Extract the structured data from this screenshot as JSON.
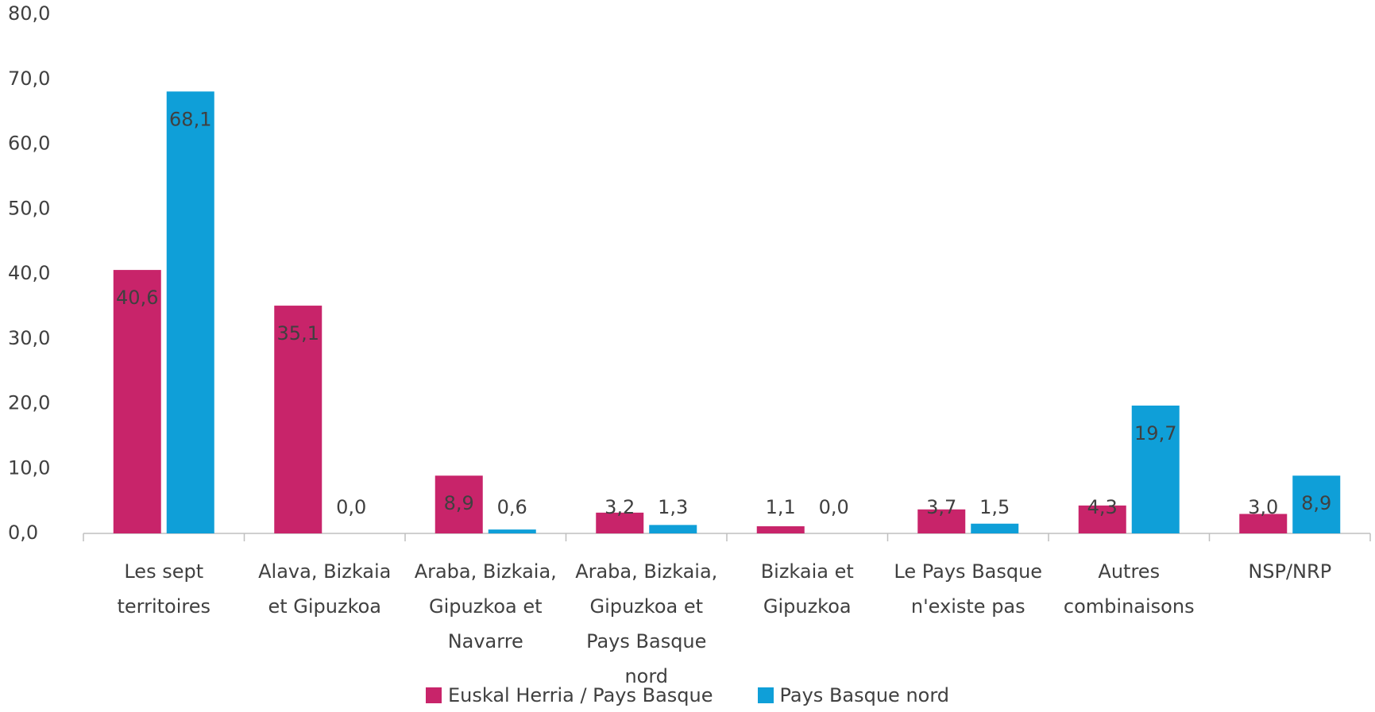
{
  "chart_data": {
    "type": "bar",
    "categories": [
      "Les sept territoires",
      "Alava, Bizkaia et Gipuzkoa",
      "Araba, Bizkaia, Gipuzkoa et Navarre",
      "Araba, Bizkaia, Gipuzkoa et Pays Basque nord",
      "Bizkaia et Gipuzkoa",
      "Le Pays Basque n'existe pas",
      "Autres combinaisons",
      "NSP/NRP"
    ],
    "series": [
      {
        "name": "Euskal Herria / Pays Basque",
        "color": "#c8246a",
        "values": [
          40.6,
          35.1,
          8.9,
          3.2,
          1.1,
          3.7,
          4.3,
          3.0
        ],
        "value_labels": [
          "40,6",
          "35,1",
          "8,9",
          "3,2",
          "1,1",
          "3,7",
          "4,3",
          "3,0"
        ]
      },
      {
        "name": "Pays Basque nord",
        "color": "#0f9fd8",
        "values": [
          68.1,
          0.0,
          0.6,
          1.3,
          0.0,
          1.5,
          19.7,
          8.9
        ],
        "value_labels": [
          "68,1",
          "0,0",
          "0,6",
          "1,3",
          "0,0",
          "1,5",
          "19,7",
          "8,9"
        ]
      }
    ],
    "ylim": [
      0,
      80
    ],
    "yticks": [
      {
        "value": 0,
        "label": "0,0"
      },
      {
        "value": 10,
        "label": "10,0"
      },
      {
        "value": 20,
        "label": "20,0"
      },
      {
        "value": 30,
        "label": "30,0"
      },
      {
        "value": 40,
        "label": "40,0"
      },
      {
        "value": 50,
        "label": "50,0"
      },
      {
        "value": 60,
        "label": "60,0"
      },
      {
        "value": 70,
        "label": "70,0"
      },
      {
        "value": 80,
        "label": "80,0"
      }
    ],
    "grid": false,
    "legend": "bottom"
  }
}
